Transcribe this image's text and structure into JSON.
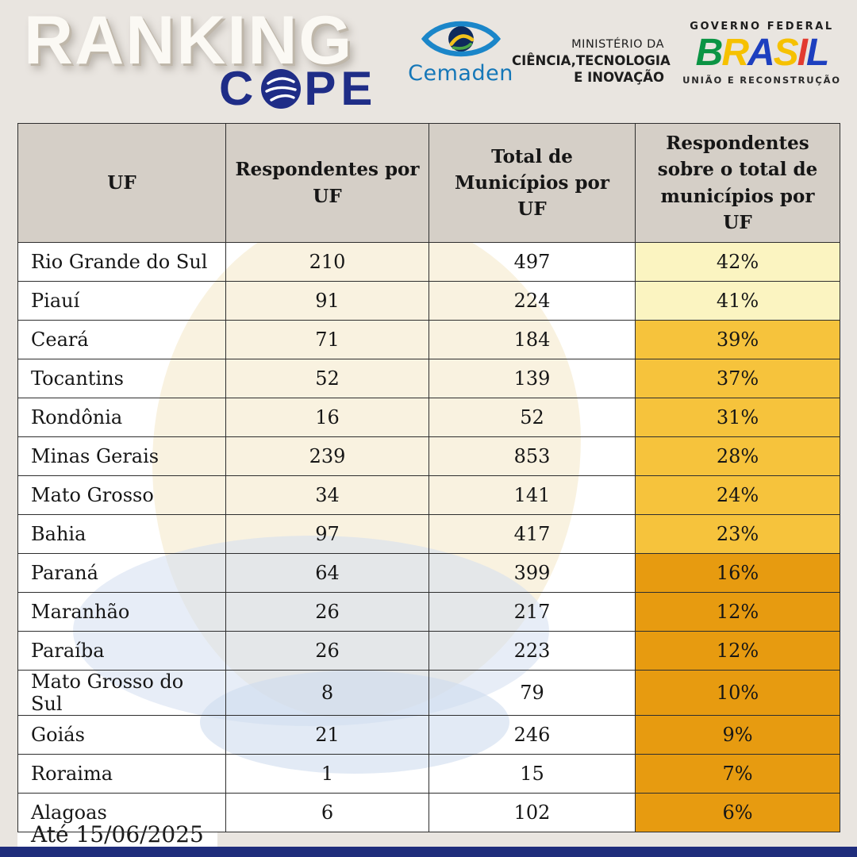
{
  "header": {
    "title": {
      "line1": "RANKING",
      "line2_pre": "C",
      "line2_post": "PE"
    },
    "cemaden": {
      "label": "Cemaden"
    },
    "mcti": {
      "lines": [
        "MINISTÉRIO DA",
        "CIÊNCIA,TECNOLOGIA",
        "E INOVAÇÃO"
      ]
    },
    "gov": {
      "top": "GOVERNO FEDERAL",
      "brasil_letters": [
        {
          "ch": "B",
          "color": "#0b9444"
        },
        {
          "ch": "R",
          "color": "#f6c100"
        },
        {
          "ch": "A",
          "color": "#1d3fbf"
        },
        {
          "ch": "S",
          "color": "#f6c100"
        },
        {
          "ch": "I",
          "color": "#e23b30"
        },
        {
          "ch": "L",
          "color": "#1d3fbf"
        }
      ],
      "bottom": "UNIÃO E RECONSTRUÇÃO"
    }
  },
  "chart_data": {
    "type": "table",
    "title": "Ranking COPE",
    "columns": [
      "UF",
      "Respondentes por UF",
      "Total de Municípios por UF",
      "Respondentes sobre o total de municípios por UF"
    ],
    "rows": [
      {
        "uf": "Rio Grande do Sul",
        "respondentes": 210,
        "total_municipios": 497,
        "percentual": "42%",
        "pct_color": "#fbf4c1"
      },
      {
        "uf": "Piauí",
        "respondentes": 91,
        "total_municipios": 224,
        "percentual": "41%",
        "pct_color": "#fbf4c1"
      },
      {
        "uf": "Ceará",
        "respondentes": 71,
        "total_municipios": 184,
        "percentual": "39%",
        "pct_color": "#f6c33c"
      },
      {
        "uf": "Tocantins",
        "respondentes": 52,
        "total_municipios": 139,
        "percentual": "37%",
        "pct_color": "#f6c33c"
      },
      {
        "uf": "Rondônia",
        "respondentes": 16,
        "total_municipios": 52,
        "percentual": "31%",
        "pct_color": "#f6c33c"
      },
      {
        "uf": "Minas Gerais",
        "respondentes": 239,
        "total_municipios": 853,
        "percentual": "28%",
        "pct_color": "#f6c33c"
      },
      {
        "uf": "Mato Grosso",
        "respondentes": 34,
        "total_municipios": 141,
        "percentual": "24%",
        "pct_color": "#f6c33c"
      },
      {
        "uf": "Bahia",
        "respondentes": 97,
        "total_municipios": 417,
        "percentual": "23%",
        "pct_color": "#f6c33c"
      },
      {
        "uf": "Paraná",
        "respondentes": 64,
        "total_municipios": 399,
        "percentual": "16%",
        "pct_color": "#e79b10"
      },
      {
        "uf": "Maranhão",
        "respondentes": 26,
        "total_municipios": 217,
        "percentual": "12%",
        "pct_color": "#e79b10"
      },
      {
        "uf": "Paraíba",
        "respondentes": 26,
        "total_municipios": 223,
        "percentual": "12%",
        "pct_color": "#e79b10"
      },
      {
        "uf": "Mato Grosso do Sul",
        "respondentes": 8,
        "total_municipios": 79,
        "percentual": "10%",
        "pct_color": "#e79b10"
      },
      {
        "uf": "Goiás",
        "respondentes": 21,
        "total_municipios": 246,
        "percentual": "9%",
        "pct_color": "#e79b10"
      },
      {
        "uf": "Roraima",
        "respondentes": 1,
        "total_municipios": 15,
        "percentual": "7%",
        "pct_color": "#e79b10"
      },
      {
        "uf": "Alagoas",
        "respondentes": 6,
        "total_municipios": 102,
        "percentual": "6%",
        "pct_color": "#e79b10"
      }
    ]
  },
  "footer": {
    "date_label": "Até 15/06/2025"
  },
  "colors": {
    "page_bg": "#e9e5e0",
    "header_row_bg": "#d5cfc7",
    "accent_blue": "#1f2d87",
    "bottom_bar_navy": "#1f2d7c",
    "pct_tier_light": "#fbf4c1",
    "pct_tier_mid": "#f6c33c",
    "pct_tier_dark": "#e79b10",
    "cemaden_blue": "#1577b8"
  }
}
